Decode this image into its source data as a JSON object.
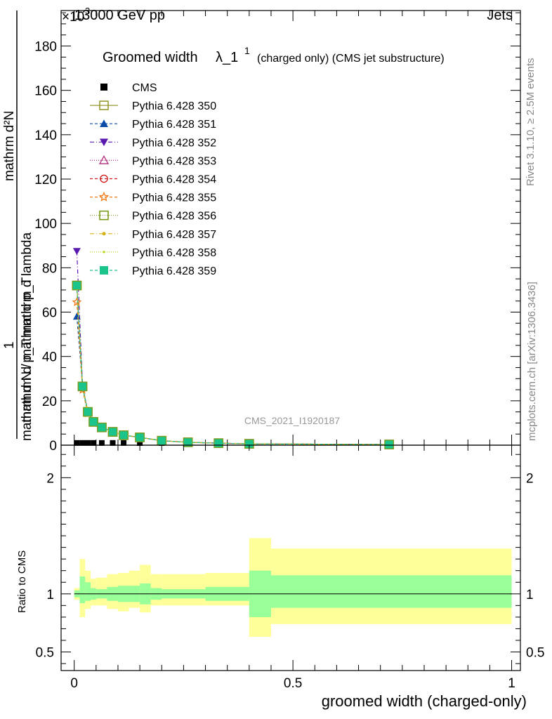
{
  "header": {
    "energy_label": "13000 GeV pp",
    "exponent_label": "×10",
    "exponent_power": "3",
    "process_label": "Jets",
    "side_label_top": "Rivet 3.1.10, ≥ 2.5M events",
    "side_label_bottom": "mcplots.cern.ch [arXiv:1306.3436]",
    "analysis_id": "CMS_2021_I1920187"
  },
  "colors": {
    "cms": "#000000",
    "ratio_band_inner": "#99ff99",
    "ratio_band_outer": "#ffff99"
  },
  "chart_data": [
    {
      "type": "line",
      "title": "Groomed width λ_1¹ (charged only) (CMS jet substructure)",
      "title_main": "Groomed width",
      "title_lambda": "λ_1",
      "title_sup": "1",
      "title_rest": "(charged only) (CMS jet substructure)",
      "ylabel_numerator": "mathrm d²N",
      "ylabel_middle": "mathrm d p_T mathrm d lambda",
      "ylabel_one": "1",
      "ylabel_denominator": "mathrm d N / mathrm d p_T",
      "xlabel": "groomed width (charged-only)",
      "xlim": [
        -0.03,
        1.02
      ],
      "ylim": [
        0,
        196
      ],
      "y_scale_factor": 1000,
      "yticks": [
        0,
        20,
        40,
        60,
        80,
        100,
        120,
        140,
        160,
        180
      ],
      "xticks": [
        0,
        0.5,
        1
      ],
      "xtick_labels": [
        "0",
        "0.5",
        "1"
      ],
      "grid": false,
      "legend_position": "top-left",
      "cms_bins": [
        0.0,
        0.0125,
        0.025,
        0.0375,
        0.05,
        0.075,
        0.1,
        0.15,
        0.2,
        0.25,
        0.3,
        0.4,
        0.45,
        1.0
      ],
      "cms_values": [
        1.0,
        1.0,
        1.0,
        1.0,
        1.0,
        1.0,
        1.0,
        0.5,
        0.5,
        0.3,
        0.2,
        0.1,
        0.05
      ],
      "x": [
        0.006,
        0.019,
        0.031,
        0.044,
        0.063,
        0.088,
        0.113,
        0.15,
        0.2,
        0.26,
        0.33,
        0.4,
        0.72
      ],
      "series": [
        {
          "name": "CMS",
          "values": [
            1.0,
            1.0,
            1.0,
            1.0,
            1.0,
            1.0,
            1.0,
            0.5,
            0.5,
            0.3,
            0.2,
            0.1,
            0.05
          ],
          "color": "#000000",
          "marker": "square-filled",
          "dash": "none"
        },
        {
          "name": "Pythia 6.428 350",
          "values": [
            72,
            26.5,
            15,
            10.5,
            8,
            6,
            4.5,
            3.5,
            2,
            1.3,
            0.9,
            0.6,
            0.3
          ],
          "color": "#999933",
          "marker": "square-open",
          "dash": "none"
        },
        {
          "name": "Pythia 6.428 351",
          "values": [
            58,
            27,
            15,
            10.5,
            8,
            6,
            4.5,
            3.5,
            2,
            1.3,
            0.9,
            0.6,
            0.3
          ],
          "color": "#0b4ba8",
          "marker": "triangle-up-filled",
          "dash": "4,3"
        },
        {
          "name": "Pythia 6.428 352",
          "values": [
            87.5,
            27,
            15,
            10.5,
            8,
            6,
            4.5,
            3.5,
            2,
            1.3,
            0.9,
            0.6,
            0.3
          ],
          "color": "#5a1ab0",
          "marker": "triangle-down-filled",
          "dash": "6,3,1,3"
        },
        {
          "name": "Pythia 6.428 353",
          "values": [
            72,
            26.5,
            15,
            10.5,
            8,
            6,
            4.5,
            3.5,
            2,
            1.3,
            0.9,
            0.6,
            0.3
          ],
          "color": "#b0307a",
          "marker": "triangle-up-open",
          "dash": "1,2"
        },
        {
          "name": "Pythia 6.428 354",
          "values": [
            72,
            26.5,
            15,
            10.5,
            8,
            6,
            4.5,
            3.5,
            2,
            1.3,
            0.9,
            0.6,
            0.3
          ],
          "color": "#d11a1a",
          "marker": "circle-open",
          "dash": "4,3"
        },
        {
          "name": "Pythia 6.428 355",
          "values": [
            64.5,
            25,
            14.5,
            10,
            8,
            6,
            4.5,
            3.5,
            2,
            1.3,
            0.9,
            0.6,
            0.3
          ],
          "color": "#f07a1a",
          "marker": "star-open",
          "dash": "4,3"
        },
        {
          "name": "Pythia 6.428 356",
          "values": [
            72,
            26.5,
            15,
            10.5,
            8,
            6,
            4.5,
            3.5,
            2,
            1.3,
            0.9,
            0.6,
            0.3
          ],
          "color": "#7a9a1a",
          "marker": "square-open",
          "dash": "1,2"
        },
        {
          "name": "Pythia 6.428 357",
          "values": [
            72,
            26.5,
            15,
            10.5,
            8,
            6,
            4.5,
            3.5,
            2,
            1.3,
            0.9,
            0.6,
            0.3
          ],
          "color": "#d6b21a",
          "marker": "dot",
          "dash": "6,3,1,3"
        },
        {
          "name": "Pythia 6.428 358",
          "values": [
            72,
            26.5,
            15,
            10.5,
            8,
            6,
            4.5,
            3.5,
            2,
            1.3,
            0.9,
            0.6,
            0.3
          ],
          "color": "#b8d61a",
          "marker": "dot-small",
          "dash": "1,2"
        },
        {
          "name": "Pythia 6.428 359",
          "values": [
            72,
            26.5,
            15,
            10.5,
            8,
            6,
            4.5,
            3.5,
            2,
            1.3,
            0.9,
            0.6,
            0.3
          ],
          "color": "#1ac48a",
          "marker": "square-filled",
          "dash": "4,3"
        }
      ]
    },
    {
      "type": "area",
      "ylabel": "Ratio to CMS",
      "xlim": [
        -0.03,
        1.02
      ],
      "ylim": [
        0.34,
        2.28
      ],
      "yticks": [
        0.5,
        1,
        2
      ],
      "ytick_labels": [
        "0.5",
        "1",
        "2"
      ],
      "reference_line": 1,
      "bins": [
        0.0,
        0.0125,
        0.025,
        0.0375,
        0.05,
        0.075,
        0.1,
        0.125,
        0.15,
        0.175,
        0.2,
        0.3,
        0.4,
        0.45,
        1.0
      ],
      "inner_band": {
        "upper": [
          1.03,
          1.15,
          1.1,
          1.05,
          1.04,
          1.06,
          1.07,
          1.07,
          1.09,
          1.05,
          1.04,
          1.06,
          1.2,
          1.16
        ],
        "lower": [
          0.97,
          0.92,
          0.94,
          0.95,
          0.96,
          0.94,
          0.93,
          0.93,
          0.91,
          0.95,
          0.96,
          0.94,
          0.8,
          0.88
        ]
      },
      "outer_band": {
        "upper": [
          1.05,
          1.3,
          1.2,
          1.13,
          1.14,
          1.17,
          1.18,
          1.2,
          1.25,
          1.17,
          1.17,
          1.18,
          1.48,
          1.39
        ],
        "lower": [
          0.95,
          0.8,
          0.87,
          0.9,
          0.9,
          0.87,
          0.85,
          0.88,
          0.84,
          0.9,
          0.9,
          0.9,
          0.63,
          0.74
        ]
      }
    }
  ]
}
